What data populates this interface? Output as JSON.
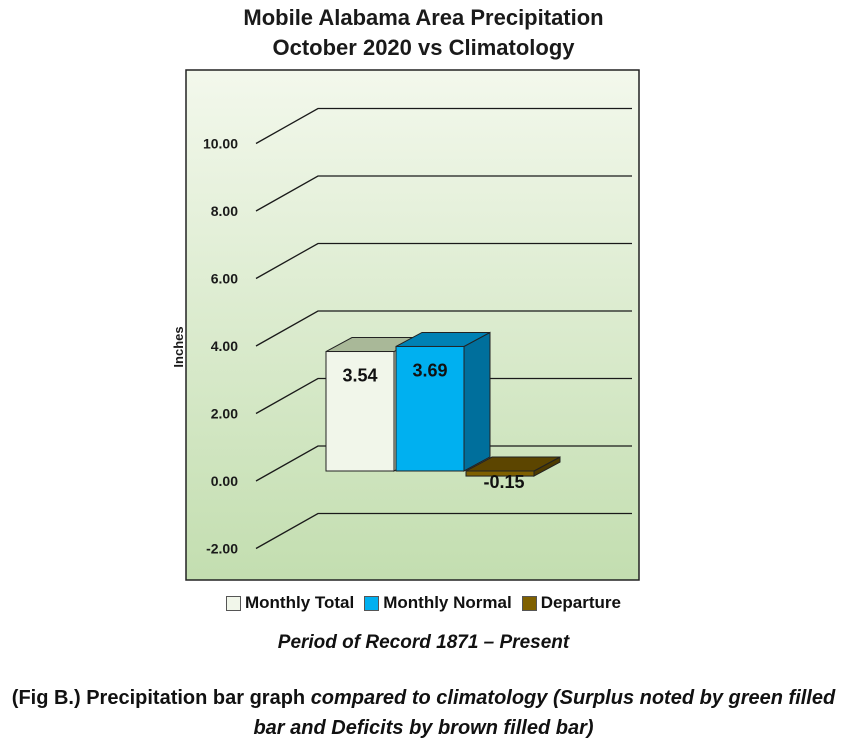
{
  "chart_data": {
    "type": "bar",
    "title_line1": "Mobile Alabama Area Precipitation",
    "title_line2": "October 2020 vs Climatology",
    "ylabel": "Inches",
    "xlabel": "",
    "ylim": [
      -2,
      10
    ],
    "ticks": [
      "-2.00",
      "0.00",
      "2.00",
      "4.00",
      "6.00",
      "8.00",
      "10.00"
    ],
    "grid": true,
    "legend_position": "bottom",
    "series": [
      {
        "name": "Monthly Total",
        "value": 3.54,
        "label": "3.54",
        "color": "#f1f6ea"
      },
      {
        "name": "Monthly Normal",
        "value": 3.69,
        "label": "3.69",
        "color": "#00b0f0"
      },
      {
        "name": "Departure",
        "value": -0.15,
        "label": "-0.15",
        "color": "#7f6000"
      }
    ]
  },
  "footer": {
    "period": "Period of Record 1871 – Present",
    "caption_lead": "(Fig B.) Precipitation bar graph ",
    "caption_rest": "compared to climatology (Surplus noted by green filled bar and Deficits by brown filled bar)"
  }
}
